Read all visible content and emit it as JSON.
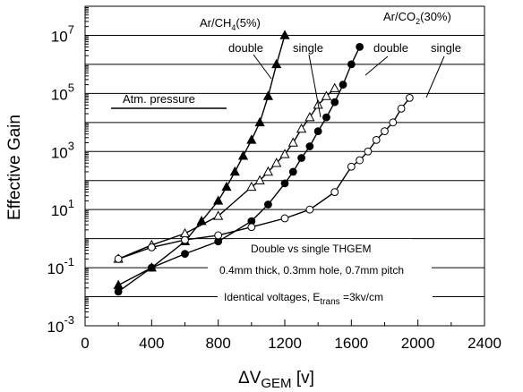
{
  "chart_data": {
    "type": "scatter",
    "title": "",
    "xlabel": {
      "main": "ΔV",
      "sub": "GEM",
      "unit": " [v]"
    },
    "ylabel": "Effective Gain",
    "xlim": [
      0,
      2400
    ],
    "ylim_exp": [
      -3,
      8
    ],
    "y_scale": "log",
    "x_ticks": [
      0,
      400,
      800,
      1200,
      1600,
      2000,
      2400
    ],
    "x_tick_labels": [
      "0",
      "400",
      "800",
      "1200",
      "1600",
      "2000",
      "2400"
    ],
    "y_ticks_exp": [
      -3,
      -1,
      1,
      3,
      5,
      7
    ],
    "y_tick_base": "10",
    "y_tick_exps": [
      "-3",
      "-1",
      "1",
      "3",
      "5",
      "7"
    ],
    "grid": "horizontal",
    "series": [
      {
        "marker": "filled-triangle",
        "gas": "Ar/CH4(5%)",
        "mode": "double",
        "x": [
          200,
          400,
          600,
          700,
          800,
          850,
          900,
          950,
          1000,
          1050,
          1100,
          1150,
          1200
        ],
        "y": [
          0.025,
          0.1,
          0.8,
          4,
          20,
          60,
          200,
          700,
          2500,
          10000,
          80000,
          1000000,
          10000000
        ]
      },
      {
        "marker": "open-triangle",
        "gas": "Ar/CH4(5%)",
        "mode": "single",
        "x": [
          200,
          400,
          600,
          800,
          1000,
          1050,
          1100,
          1150,
          1200,
          1250,
          1300,
          1350,
          1400,
          1450,
          1500
        ],
        "y": [
          0.2,
          0.6,
          1.5,
          6,
          60,
          100,
          200,
          400,
          800,
          2000,
          6000,
          15000,
          40000,
          80000,
          150000
        ]
      },
      {
        "marker": "filled-circle",
        "gas": "Ar/CO2(30%)",
        "mode": "double",
        "x": [
          200,
          400,
          600,
          800,
          1000,
          1100,
          1200,
          1250,
          1300,
          1350,
          1400,
          1450,
          1500,
          1550,
          1600,
          1650
        ],
        "y": [
          0.015,
          0.1,
          0.3,
          0.8,
          4,
          15,
          80,
          200,
          600,
          1500,
          5000,
          15000,
          50000,
          200000,
          1000000,
          4000000
        ]
      },
      {
        "marker": "open-circle",
        "gas": "Ar/CO2(30%)",
        "mode": "single",
        "x": [
          200,
          400,
          600,
          800,
          1000,
          1200,
          1350,
          1500,
          1600,
          1650,
          1700,
          1750,
          1800,
          1850,
          1900,
          1950
        ],
        "y": [
          0.2,
          0.5,
          0.9,
          1.3,
          2.5,
          5,
          10,
          40,
          300,
          500,
          1000,
          2500,
          5000,
          10000,
          30000,
          70000
        ]
      }
    ],
    "annotations": {
      "ch4_gas": {
        "pre": "Ar/CH",
        "sub": "4",
        "post": "(5%)"
      },
      "co2_gas": {
        "pre": "Ar/CO",
        "sub": "2",
        "post": "(30%)"
      },
      "ch4_double": "double",
      "ch4_single": "single",
      "co2_double": "double",
      "co2_single": "single",
      "atm": "Atm. pressure",
      "info1": "Double vs single THGEM",
      "info2": "0.4mm thick, 0.3mm hole, 0.7mm pitch",
      "info3_pre": "Identical voltages, E",
      "info3_sub": "trans",
      "info3_post": " =3kv/cm"
    }
  }
}
